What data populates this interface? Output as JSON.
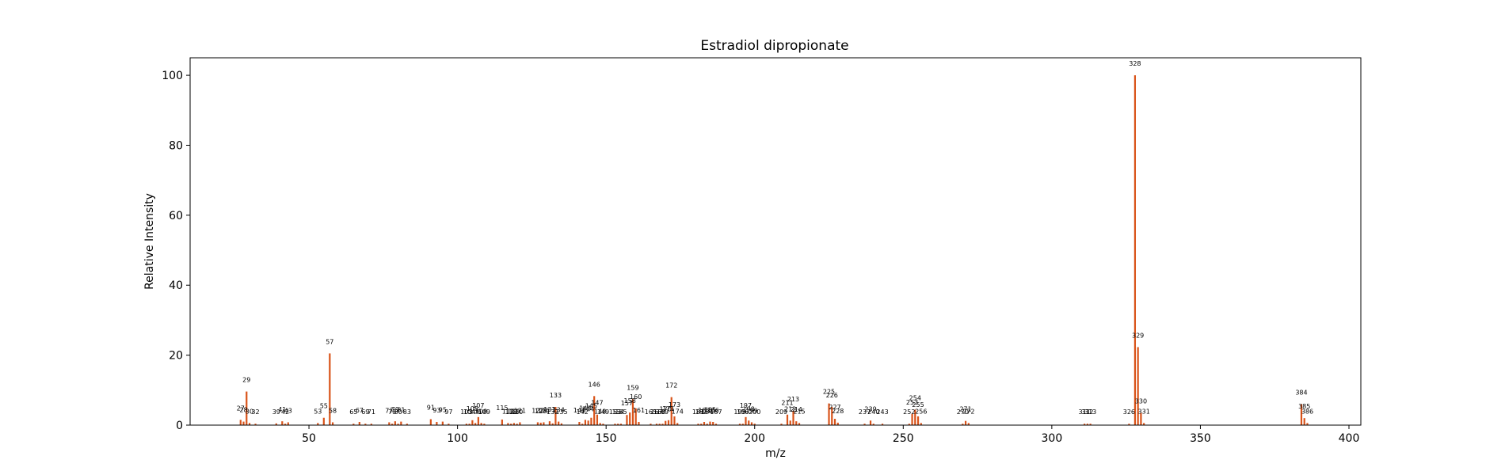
{
  "chart_data": {
    "type": "bar",
    "title": "Estradiol dipropionate",
    "xlabel": "m/z",
    "ylabel": "Relative Intensity",
    "xlim": [
      10,
      404
    ],
    "ylim": [
      0,
      105
    ],
    "xticks": [
      50,
      100,
      150,
      200,
      250,
      300,
      350,
      400
    ],
    "yticks": [
      0,
      20,
      40,
      60,
      80,
      100
    ],
    "grid": false,
    "bar_color": "#d95319",
    "peaks": [
      {
        "mz": 27,
        "intensity": 1.5
      },
      {
        "mz": 28,
        "intensity": 1.0
      },
      {
        "mz": 29,
        "intensity": 9.6
      },
      {
        "mz": 30,
        "intensity": 0.6
      },
      {
        "mz": 32,
        "intensity": 0.4
      },
      {
        "mz": 39,
        "intensity": 0.5
      },
      {
        "mz": 41,
        "intensity": 1.1
      },
      {
        "mz": 42,
        "intensity": 0.4
      },
      {
        "mz": 43,
        "intensity": 0.8
      },
      {
        "mz": 53,
        "intensity": 0.6
      },
      {
        "mz": 55,
        "intensity": 2.1
      },
      {
        "mz": 57,
        "intensity": 20.5
      },
      {
        "mz": 58,
        "intensity": 0.8
      },
      {
        "mz": 65,
        "intensity": 0.4
      },
      {
        "mz": 67,
        "intensity": 0.9
      },
      {
        "mz": 69,
        "intensity": 0.4
      },
      {
        "mz": 71,
        "intensity": 0.4
      },
      {
        "mz": 77,
        "intensity": 0.8
      },
      {
        "mz": 78,
        "intensity": 0.4
      },
      {
        "mz": 79,
        "intensity": 1.1
      },
      {
        "mz": 80,
        "intensity": 0.4
      },
      {
        "mz": 81,
        "intensity": 1.0
      },
      {
        "mz": 83,
        "intensity": 0.4
      },
      {
        "mz": 91,
        "intensity": 1.7
      },
      {
        "mz": 93,
        "intensity": 0.9
      },
      {
        "mz": 95,
        "intensity": 1.0
      },
      {
        "mz": 97,
        "intensity": 0.4
      },
      {
        "mz": 103,
        "intensity": 0.4
      },
      {
        "mz": 104,
        "intensity": 0.4
      },
      {
        "mz": 105,
        "intensity": 1.4
      },
      {
        "mz": 106,
        "intensity": 0.6
      },
      {
        "mz": 107,
        "intensity": 2.3
      },
      {
        "mz": 108,
        "intensity": 0.6
      },
      {
        "mz": 109,
        "intensity": 0.4
      },
      {
        "mz": 115,
        "intensity": 1.6
      },
      {
        "mz": 117,
        "intensity": 0.6
      },
      {
        "mz": 118,
        "intensity": 0.4
      },
      {
        "mz": 119,
        "intensity": 0.6
      },
      {
        "mz": 120,
        "intensity": 0.4
      },
      {
        "mz": 121,
        "intensity": 0.8
      },
      {
        "mz": 127,
        "intensity": 0.8
      },
      {
        "mz": 128,
        "intensity": 0.7
      },
      {
        "mz": 129,
        "intensity": 0.8
      },
      {
        "mz": 131,
        "intensity": 1.1
      },
      {
        "mz": 132,
        "intensity": 0.5
      },
      {
        "mz": 133,
        "intensity": 5.2
      },
      {
        "mz": 134,
        "intensity": 1.0
      },
      {
        "mz": 135,
        "intensity": 0.5
      },
      {
        "mz": 141,
        "intensity": 0.9
      },
      {
        "mz": 142,
        "intensity": 0.4
      },
      {
        "mz": 143,
        "intensity": 1.5
      },
      {
        "mz": 144,
        "intensity": 1.3
      },
      {
        "mz": 145,
        "intensity": 2.1
      },
      {
        "mz": 146,
        "intensity": 8.3
      },
      {
        "mz": 147,
        "intensity": 3.0
      },
      {
        "mz": 148,
        "intensity": 0.6
      },
      {
        "mz": 149,
        "intensity": 0.4
      },
      {
        "mz": 153,
        "intensity": 0.4
      },
      {
        "mz": 154,
        "intensity": 0.4
      },
      {
        "mz": 155,
        "intensity": 0.4
      },
      {
        "mz": 157,
        "intensity": 2.9
      },
      {
        "mz": 158,
        "intensity": 3.6
      },
      {
        "mz": 159,
        "intensity": 7.4
      },
      {
        "mz": 160,
        "intensity": 4.8
      },
      {
        "mz": 161,
        "intensity": 0.9
      },
      {
        "mz": 165,
        "intensity": 0.4
      },
      {
        "mz": 167,
        "intensity": 0.4
      },
      {
        "mz": 168,
        "intensity": 0.4
      },
      {
        "mz": 169,
        "intensity": 0.4
      },
      {
        "mz": 170,
        "intensity": 1.2
      },
      {
        "mz": 171,
        "intensity": 1.4
      },
      {
        "mz": 172,
        "intensity": 8.0
      },
      {
        "mz": 173,
        "intensity": 2.5
      },
      {
        "mz": 174,
        "intensity": 0.6
      },
      {
        "mz": 181,
        "intensity": 0.4
      },
      {
        "mz": 182,
        "intensity": 0.4
      },
      {
        "mz": 183,
        "intensity": 0.9
      },
      {
        "mz": 184,
        "intensity": 0.4
      },
      {
        "mz": 185,
        "intensity": 1.0
      },
      {
        "mz": 186,
        "intensity": 0.9
      },
      {
        "mz": 187,
        "intensity": 0.4
      },
      {
        "mz": 195,
        "intensity": 0.4
      },
      {
        "mz": 196,
        "intensity": 0.4
      },
      {
        "mz": 197,
        "intensity": 2.3
      },
      {
        "mz": 198,
        "intensity": 1.3
      },
      {
        "mz": 199,
        "intensity": 0.8
      },
      {
        "mz": 200,
        "intensity": 0.4
      },
      {
        "mz": 209,
        "intensity": 0.4
      },
      {
        "mz": 211,
        "intensity": 3.0
      },
      {
        "mz": 212,
        "intensity": 1.3
      },
      {
        "mz": 213,
        "intensity": 4.1
      },
      {
        "mz": 214,
        "intensity": 1.1
      },
      {
        "mz": 215,
        "intensity": 0.6
      },
      {
        "mz": 225,
        "intensity": 6.2
      },
      {
        "mz": 226,
        "intensity": 5.2
      },
      {
        "mz": 227,
        "intensity": 1.8
      },
      {
        "mz": 228,
        "intensity": 0.7
      },
      {
        "mz": 237,
        "intensity": 0.4
      },
      {
        "mz": 239,
        "intensity": 1.3
      },
      {
        "mz": 240,
        "intensity": 0.4
      },
      {
        "mz": 243,
        "intensity": 0.4
      },
      {
        "mz": 252,
        "intensity": 0.4
      },
      {
        "mz": 253,
        "intensity": 3.2
      },
      {
        "mz": 254,
        "intensity": 4.4
      },
      {
        "mz": 255,
        "intensity": 2.5
      },
      {
        "mz": 256,
        "intensity": 0.6
      },
      {
        "mz": 270,
        "intensity": 0.4
      },
      {
        "mz": 271,
        "intensity": 1.2
      },
      {
        "mz": 272,
        "intensity": 0.6
      },
      {
        "mz": 311,
        "intensity": 0.4
      },
      {
        "mz": 312,
        "intensity": 0.4
      },
      {
        "mz": 313,
        "intensity": 0.4
      },
      {
        "mz": 326,
        "intensity": 0.4
      },
      {
        "mz": 328,
        "intensity": 100
      },
      {
        "mz": 329,
        "intensity": 22.3
      },
      {
        "mz": 330,
        "intensity": 3.5
      },
      {
        "mz": 331,
        "intensity": 0.6
      },
      {
        "mz": 384,
        "intensity": 6.0
      },
      {
        "mz": 385,
        "intensity": 2.0
      },
      {
        "mz": 386,
        "intensity": 0.6
      }
    ]
  }
}
